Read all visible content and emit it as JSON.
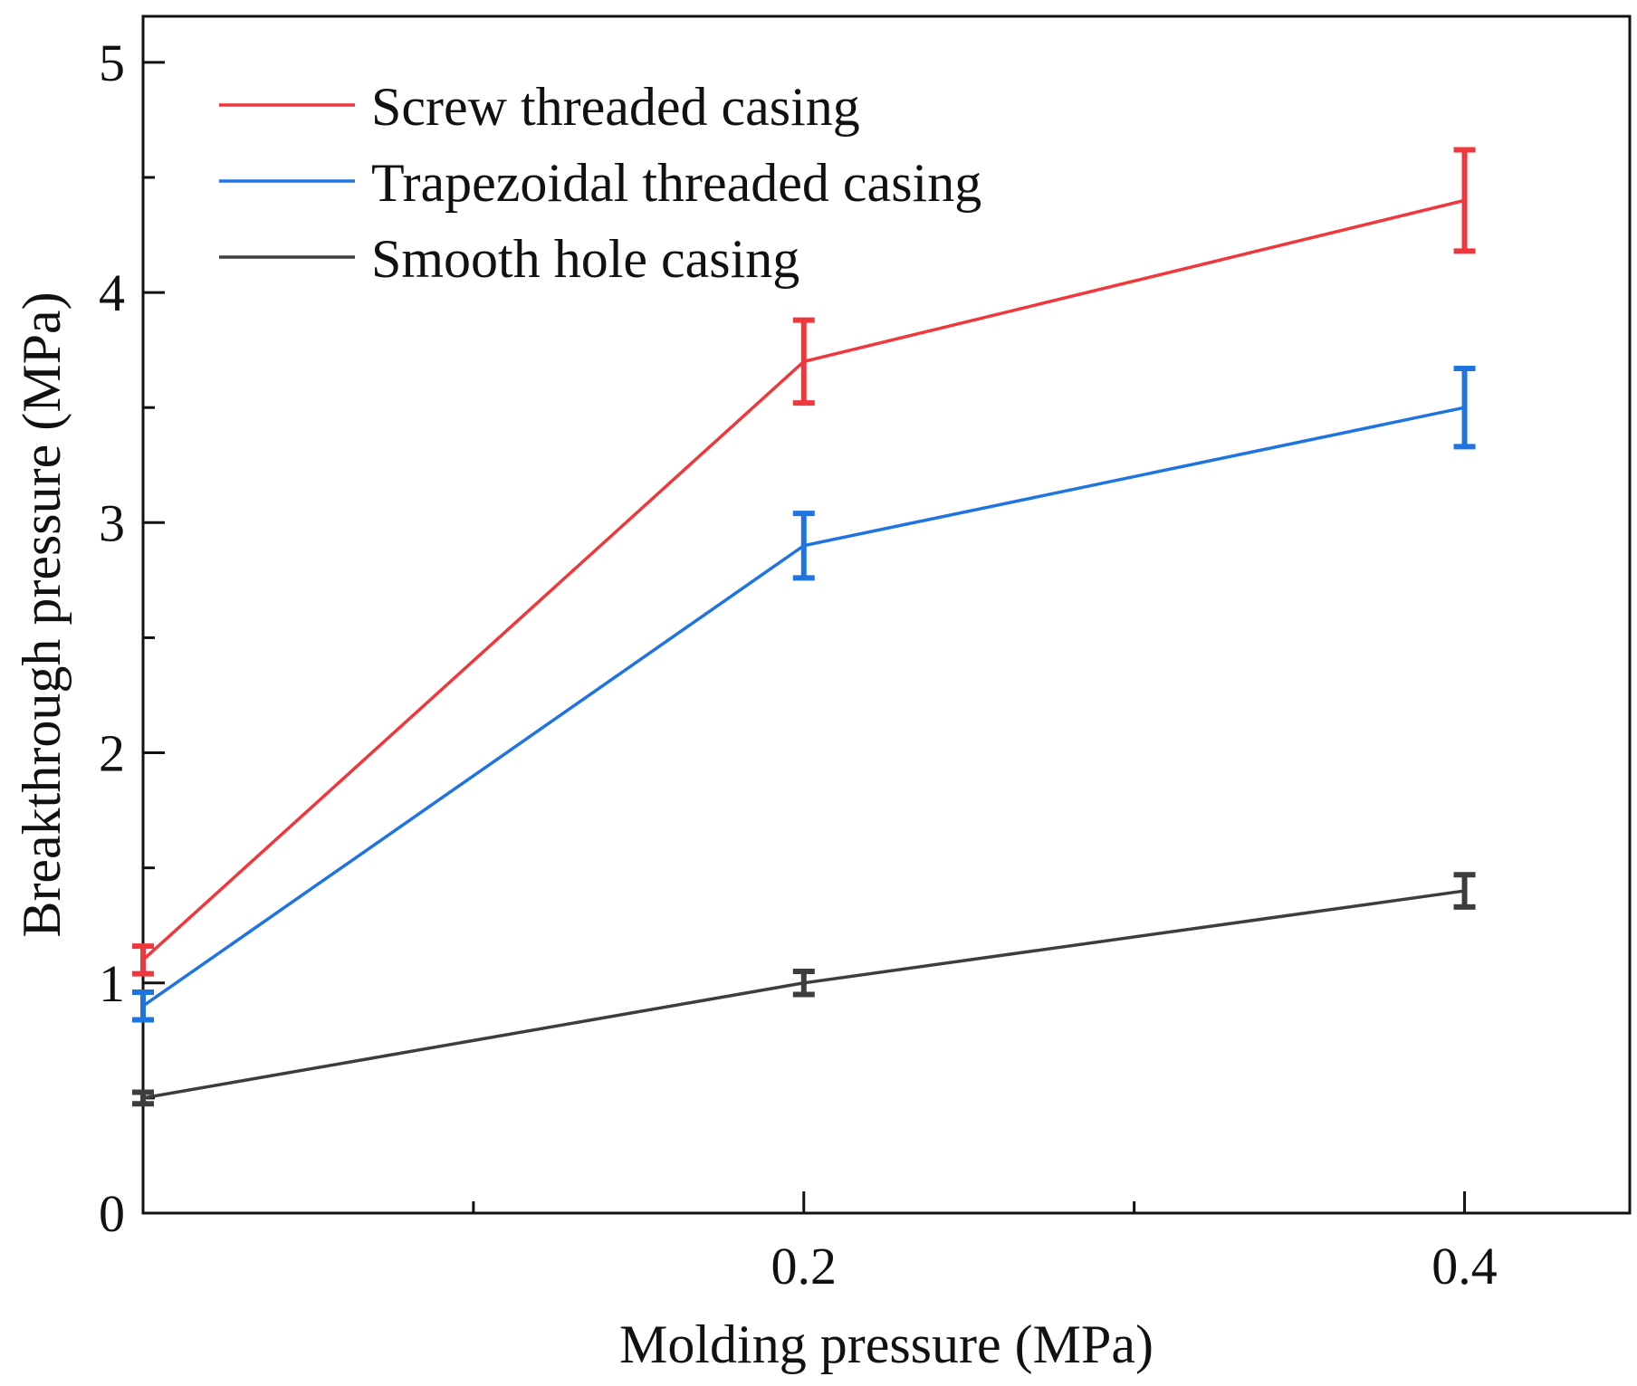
{
  "chart_data": {
    "type": "line",
    "title": "",
    "xlabel": "Molding pressure (MPa)",
    "ylabel": "Breakthrough pressure (MPa)",
    "x": [
      0.0,
      0.2,
      0.4
    ],
    "xlim": [
      0.0,
      0.45
    ],
    "ylim": [
      0,
      5.2
    ],
    "x_major_ticks": [
      0.2,
      0.4
    ],
    "x_major_tick_labels": [
      "0.2",
      "0.4"
    ],
    "x_minor_ticks": [
      0.1,
      0.3
    ],
    "y_major_ticks": [
      0,
      1,
      2,
      3,
      4,
      5
    ],
    "y_major_tick_labels": [
      "0",
      "1",
      "2",
      "3",
      "4",
      "5"
    ],
    "y_minor_ticks": [
      0.5,
      1.5,
      2.5,
      3.5,
      4.5
    ],
    "grid": false,
    "legend_position": "top-left",
    "series": [
      {
        "name": "Screw threaded casing",
        "color": "#f0373c",
        "values": [
          1.1,
          3.7,
          4.4
        ],
        "err_low": [
          0.06,
          0.18,
          0.22
        ],
        "err_high": [
          0.06,
          0.18,
          0.22
        ]
      },
      {
        "name": "Trapezoidal threaded casing",
        "color": "#1f74e0",
        "values": [
          0.9,
          2.9,
          3.5
        ],
        "err_low": [
          0.06,
          0.14,
          0.17
        ],
        "err_high": [
          0.06,
          0.14,
          0.17
        ]
      },
      {
        "name": "Smooth hole casing",
        "color": "#3d3d3d",
        "values": [
          0.5,
          1.0,
          1.4
        ],
        "err_low": [
          0.025,
          0.05,
          0.07
        ],
        "err_high": [
          0.025,
          0.05,
          0.07
        ]
      }
    ]
  }
}
